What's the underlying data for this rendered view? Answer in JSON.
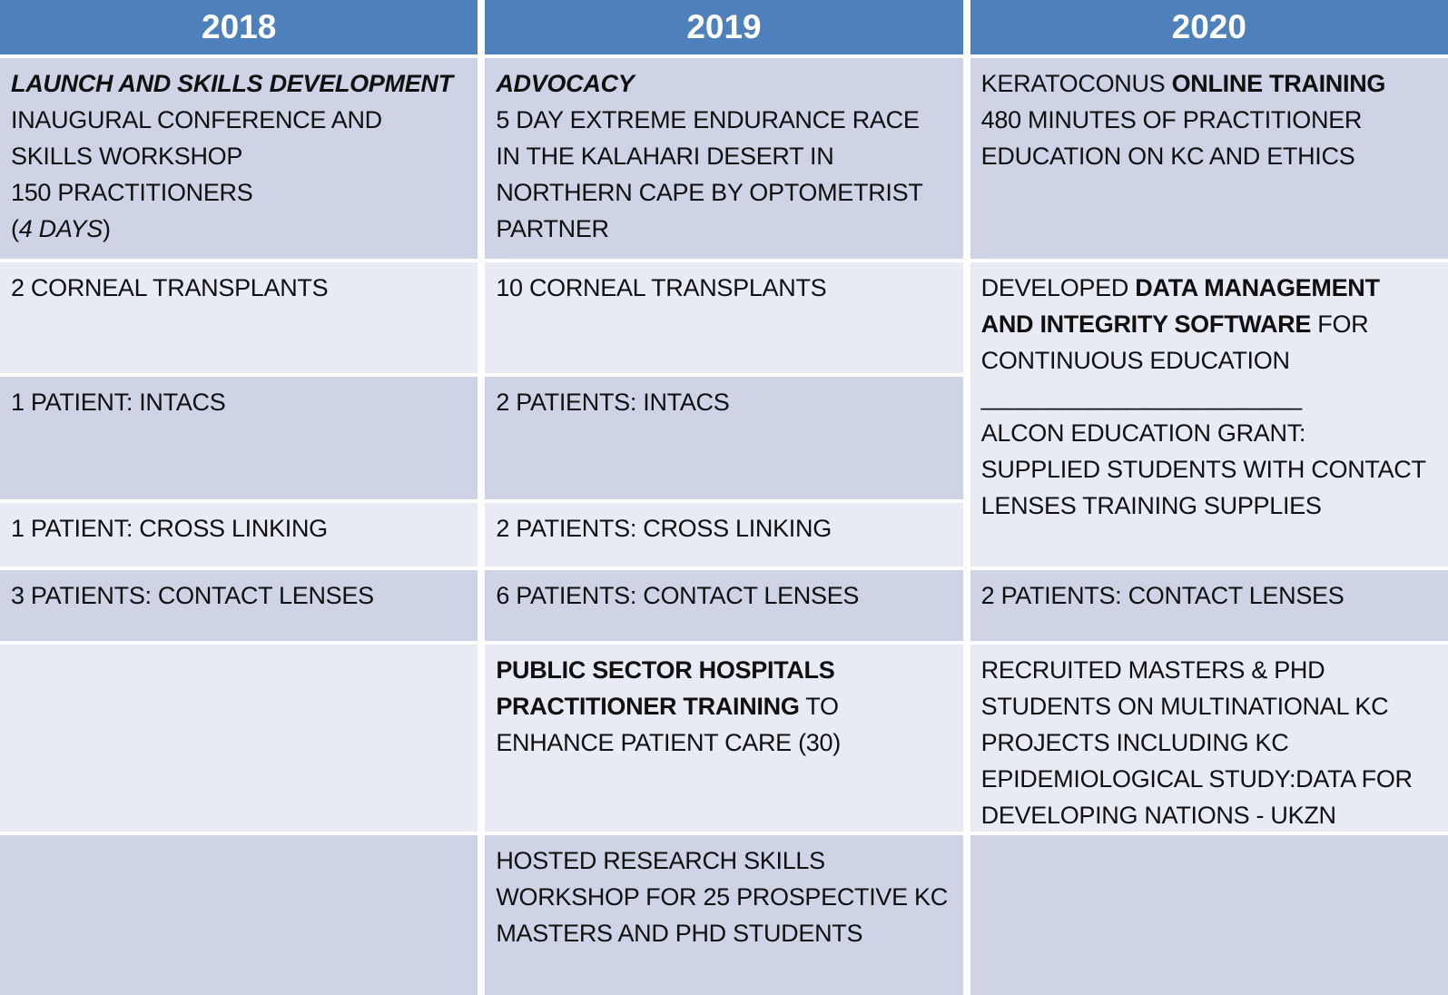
{
  "headers": [
    "2018",
    "2019",
    "2020"
  ],
  "colors": {
    "header_blue": "#4E80BB",
    "band_dark": "#CED4E6",
    "band_light": "#E8EBF4",
    "divider_white": "#FFFFFF",
    "header_text": "#FFFFFF",
    "body_text": "#101010"
  },
  "cells": {
    "r1c1": {
      "runs": [
        {
          "t": "LAUNCH AND SKILLS DEVELOPMENT",
          "b": true,
          "i": true
        },
        {
          "t": "\nINAUGURAL CONFERENCE AND\nSKILLS WORKSHOP\n150 PRACTITIONERS\n("
        },
        {
          "t": "4 DAYS",
          "i": true
        },
        {
          "t": ")"
        }
      ]
    },
    "r1c2": {
      "runs": [
        {
          "t": "ADVOCACY",
          "b": true,
          "i": true
        },
        {
          "t": "\n5 DAY EXTREME ENDURANCE RACE\nIN THE KALAHARI DESERT IN\nNORTHERN CAPE BY OPTOMETRIST\nPARTNER"
        }
      ]
    },
    "r1c3": {
      "runs": [
        {
          "t": "KERATOCONUS "
        },
        {
          "t": "ONLINE TRAINING",
          "b": true
        },
        {
          "t": "\n480 MINUTES OF PRACTITIONER\nEDUCATION ON KC AND ETHICS"
        }
      ]
    },
    "r2c1": {
      "runs": [
        {
          "t": "2 CORNEAL TRANSPLANTS"
        }
      ]
    },
    "r2c2": {
      "runs": [
        {
          "t": "10 CORNEAL TRANSPLANTS"
        }
      ]
    },
    "r2c3": {
      "runs": [
        {
          "t": "DEVELOPED "
        },
        {
          "t": "DATA MANAGEMENT\nAND INTEGRITY SOFTWARE",
          "b": true
        },
        {
          "t": " FOR\nCONTINUOUS EDUCATION\n________________________\nALCON EDUCATION GRANT:\nSUPPLIED STUDENTS WITH CONTACT\nLENSES TRAINING SUPPLIES"
        }
      ]
    },
    "r3c1": {
      "runs": [
        {
          "t": "1 PATIENT: INTACS"
        }
      ]
    },
    "r3c2": {
      "runs": [
        {
          "t": "2 PATIENTS: INTACS"
        }
      ]
    },
    "r4c1": {
      "runs": [
        {
          "t": "1 PATIENT: CROSS LINKING"
        }
      ]
    },
    "r4c2": {
      "runs": [
        {
          "t": "2 PATIENTS: CROSS LINKING"
        }
      ]
    },
    "r5c1": {
      "runs": [
        {
          "t": "3 PATIENTS: CONTACT LENSES"
        }
      ]
    },
    "r5c2": {
      "runs": [
        {
          "t": "6 PATIENTS: CONTACT LENSES"
        }
      ]
    },
    "r5c3": {
      "runs": [
        {
          "t": "2 PATIENTS: CONTACT LENSES"
        }
      ]
    },
    "r6c1": {
      "runs": []
    },
    "r6c2": {
      "runs": [
        {
          "t": "PUBLIC SECTOR HOSPITALS\nPRACTITIONER TRAINING",
          "b": true
        },
        {
          "t": " TO\nENHANCE PATIENT CARE (30)"
        }
      ]
    },
    "r6c3": {
      "runs": [
        {
          "t": "RECRUITED MASTERS & PHD\nSTUDENTS ON MULTINATIONAL KC\nPROJECTS INCLUDING KC\nEPIDEMIOLOGICAL STUDY:DATA FOR\nDEVELOPING NATIONS - UKZN"
        }
      ]
    },
    "r7c1": {
      "runs": []
    },
    "r7c2": {
      "runs": [
        {
          "t": "HOSTED RESEARCH SKILLS\nWORKSHOP FOR 25 PROSPECTIVE KC\nMASTERS AND PHD STUDENTS"
        }
      ]
    },
    "r7c3": {
      "runs": []
    }
  }
}
